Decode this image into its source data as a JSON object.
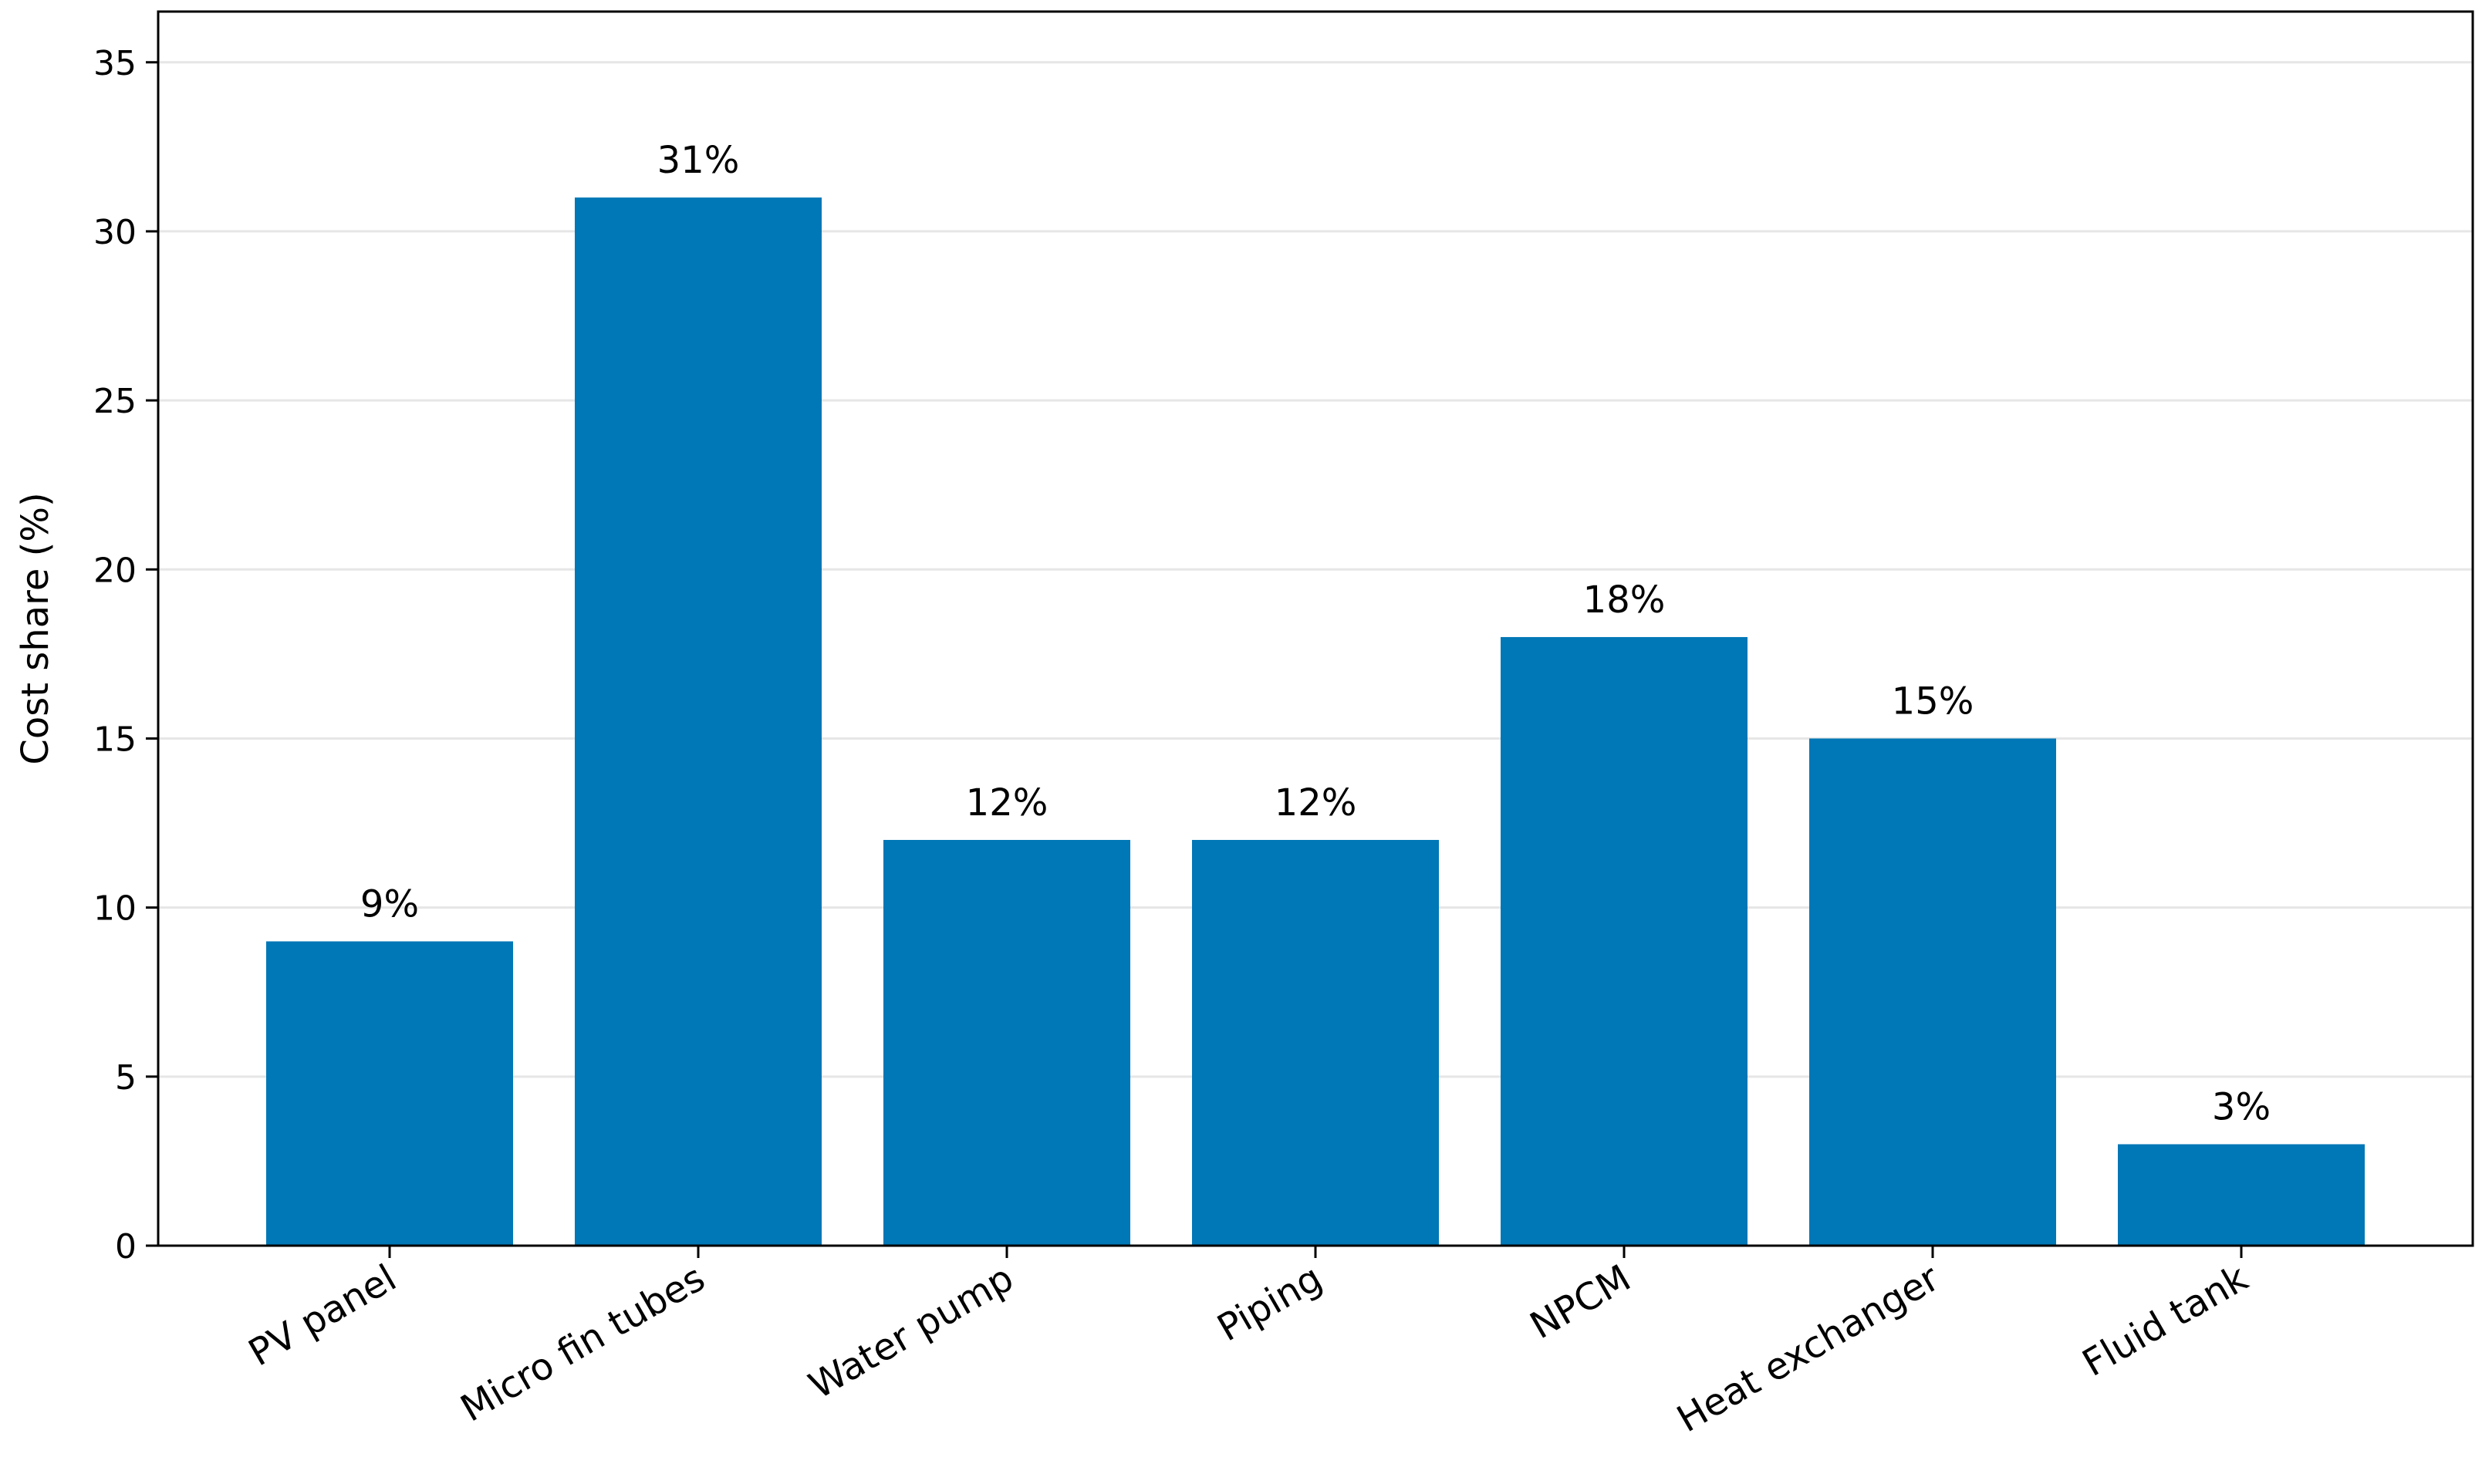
{
  "chart_data": {
    "type": "bar",
    "categories": [
      "PV panel",
      "Micro fin tubes",
      "Water pump",
      "Piping",
      "NPCM",
      "Heat exchanger",
      "Fluid tank"
    ],
    "values": [
      9,
      31,
      12,
      12,
      18,
      15,
      3
    ],
    "data_labels": [
      "9%",
      "31%",
      "12%",
      "12%",
      "18%",
      "15%",
      "3%"
    ],
    "title": "",
    "xlabel": "",
    "ylabel": "Cost share (%)",
    "ylim": [
      0,
      36.5
    ],
    "yticks": [
      0,
      5,
      10,
      15,
      20,
      25,
      30,
      35
    ],
    "grid": "horizontal",
    "bar_color": "#0077b6",
    "category_label_rotation_deg": -30
  }
}
